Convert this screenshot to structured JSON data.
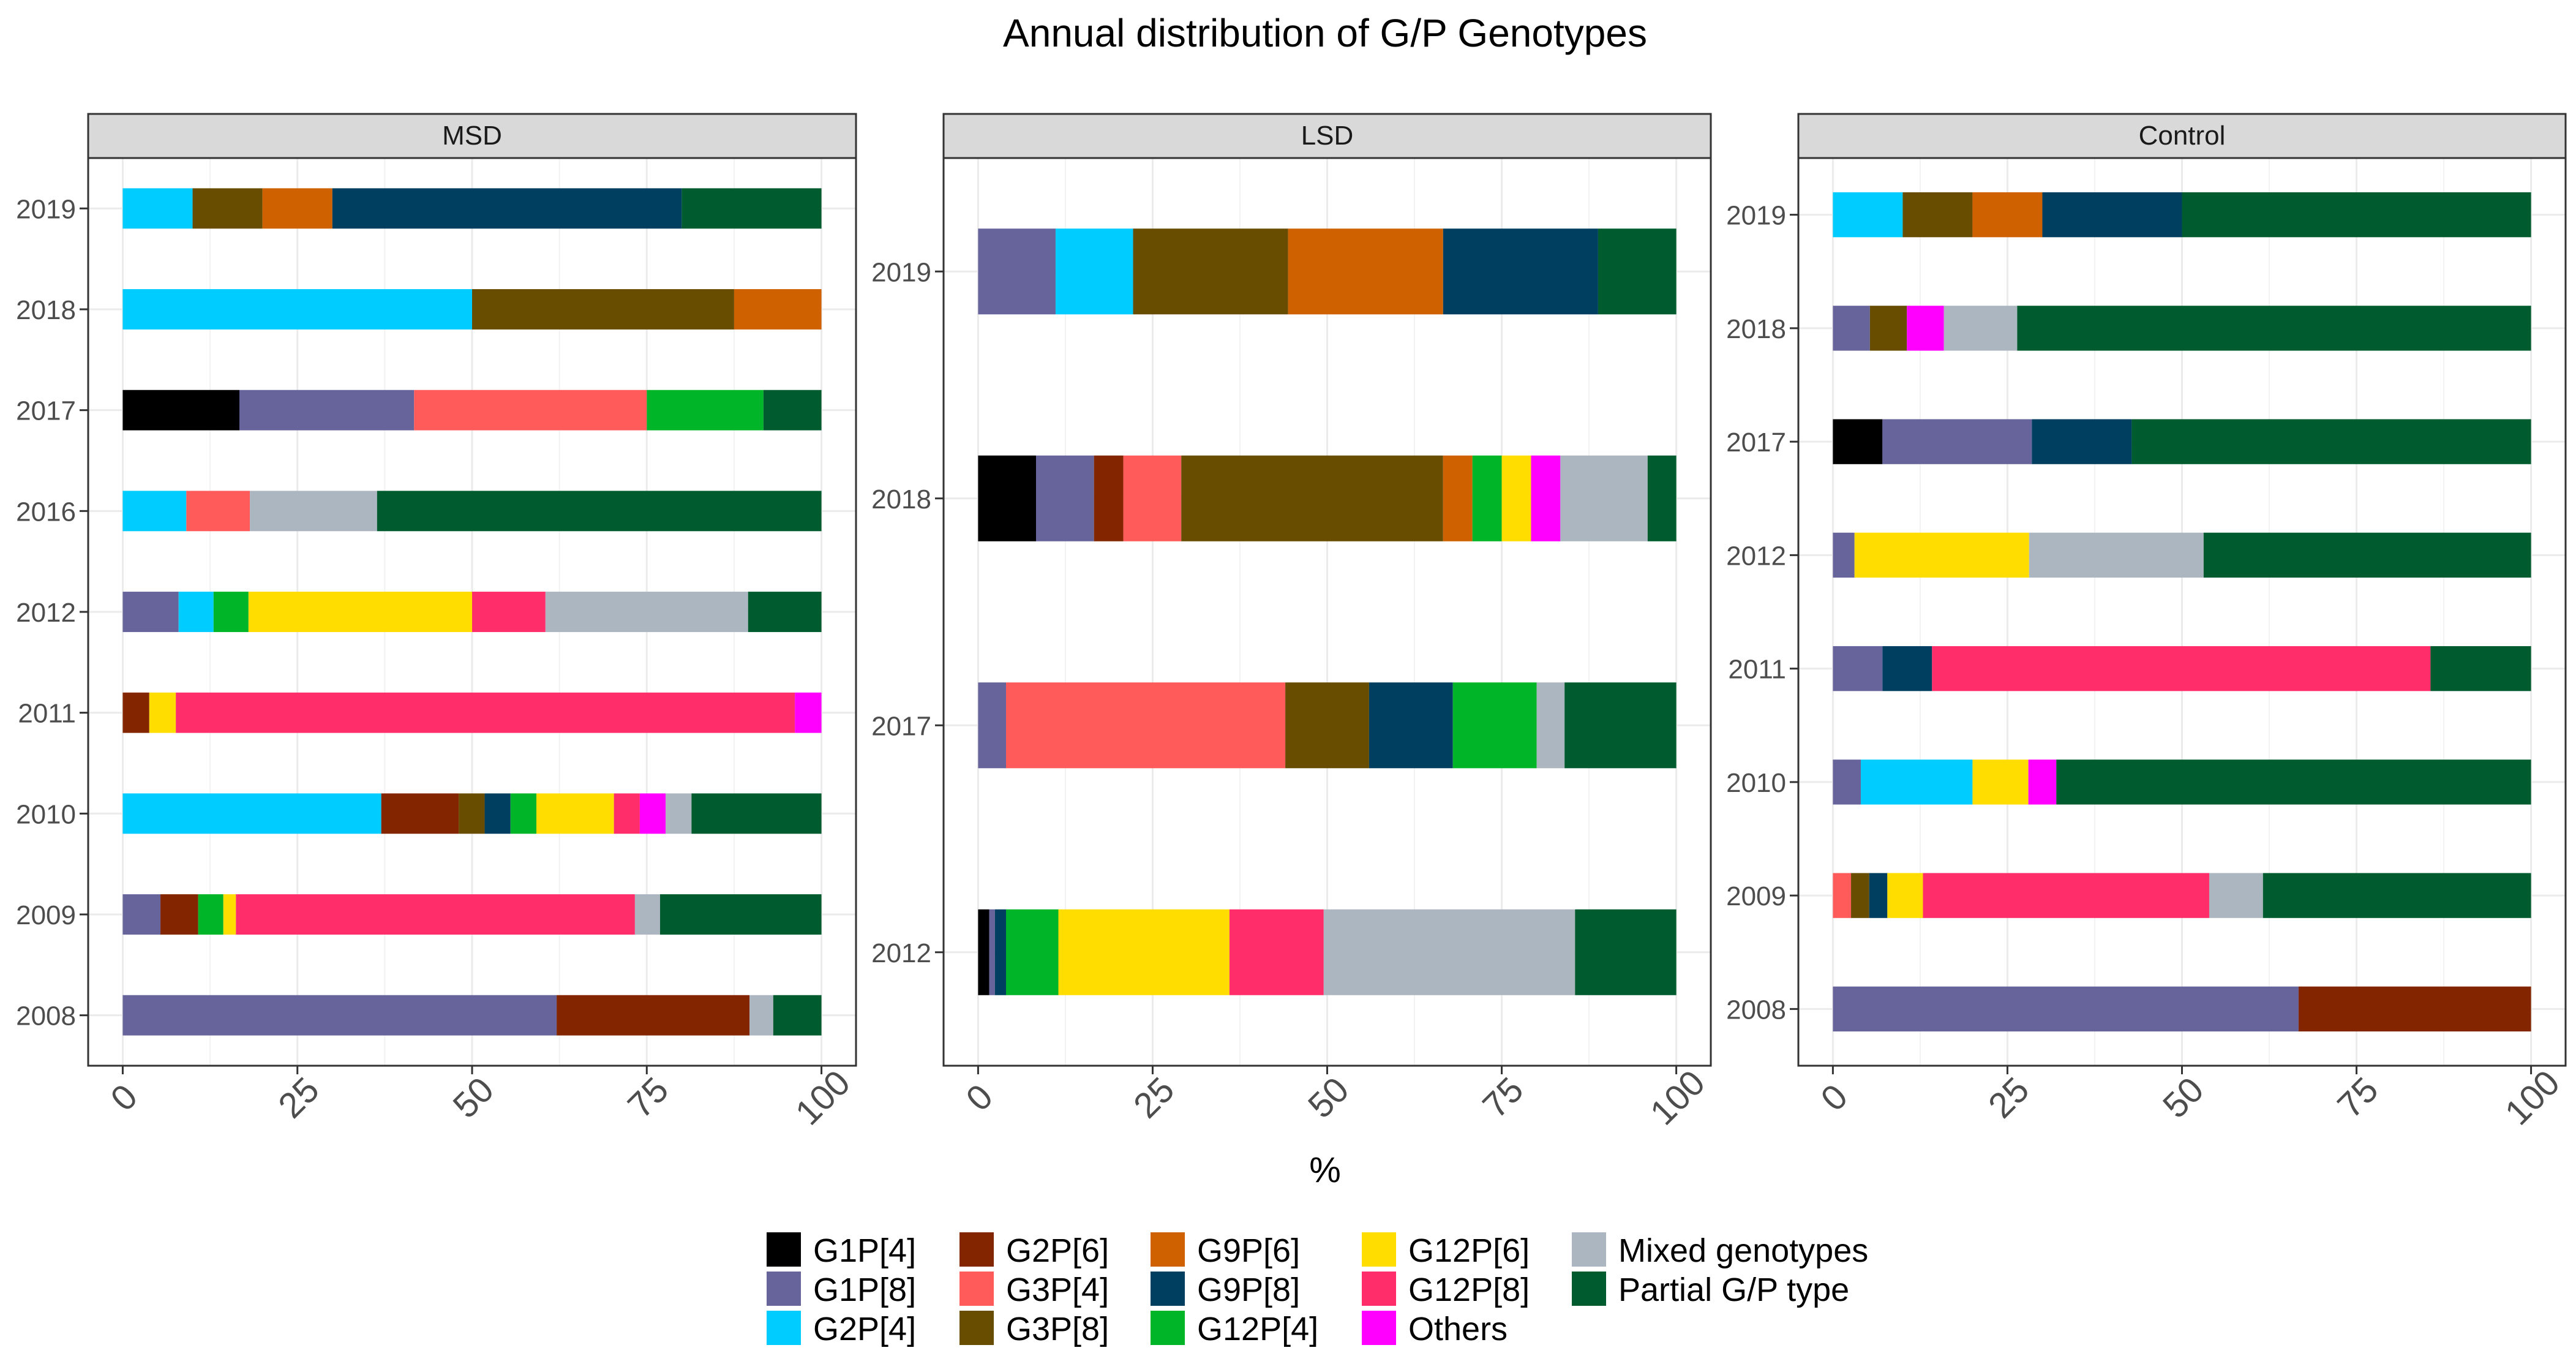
{
  "chart_data": {
    "type": "bar",
    "orientation": "horizontal",
    "stacked": true,
    "title": "Annual distribution of G/P Genotypes",
    "xlabel": "%",
    "ylabel": "",
    "xlim": [
      0,
      100
    ],
    "x_ticks": [
      "0",
      "25",
      "50",
      "75",
      "100"
    ],
    "grid": true,
    "legend_position": "bottom",
    "legend": [
      {
        "name": "G1P[4]",
        "color": "#000000"
      },
      {
        "name": "G1P[8]",
        "color": "#67649C"
      },
      {
        "name": "G2P[4]",
        "color": "#00CCFF"
      },
      {
        "name": "G2P[6]",
        "color": "#832600"
      },
      {
        "name": "G3P[4]",
        "color": "#FF5B5B"
      },
      {
        "name": "G3P[8]",
        "color": "#684C00"
      },
      {
        "name": "G9P[6]",
        "color": "#D06100"
      },
      {
        "name": "G9P[8]",
        "color": "#003F60"
      },
      {
        "name": "G12P[4]",
        "color": "#00B527"
      },
      {
        "name": "G12P[6]",
        "color": "#FFDD00"
      },
      {
        "name": "G12P[8]",
        "color": "#FF2D6A"
      },
      {
        "name": "Others",
        "color": "#FF00FF"
      },
      {
        "name": "Mixed genotypes",
        "color": "#ACB6C0"
      },
      {
        "name": "Partial G/P type",
        "color": "#005C2E"
      }
    ],
    "panels": [
      {
        "name": "MSD",
        "categories": [
          "2019",
          "2018",
          "2017",
          "2016",
          "2012",
          "2011",
          "2010",
          "2009",
          "2008"
        ],
        "bars": [
          {
            "year": "2019",
            "segments": [
              {
                "genotype": "G2P[4]",
                "value": 10
              },
              {
                "genotype": "G3P[8]",
                "value": 10
              },
              {
                "genotype": "G9P[6]",
                "value": 10
              },
              {
                "genotype": "G9P[8]",
                "value": 50
              },
              {
                "genotype": "Partial G/P type",
                "value": 20
              }
            ]
          },
          {
            "year": "2018",
            "segments": [
              {
                "genotype": "G2P[4]",
                "value": 50
              },
              {
                "genotype": "G3P[8]",
                "value": 37.5
              },
              {
                "genotype": "G9P[6]",
                "value": 12.5
              }
            ]
          },
          {
            "year": "2017",
            "segments": [
              {
                "genotype": "G1P[4]",
                "value": 16.7
              },
              {
                "genotype": "G1P[8]",
                "value": 25
              },
              {
                "genotype": "G3P[4]",
                "value": 33.3
              },
              {
                "genotype": "G12P[4]",
                "value": 16.7
              },
              {
                "genotype": "Partial G/P type",
                "value": 8.3
              }
            ]
          },
          {
            "year": "2016",
            "segments": [
              {
                "genotype": "G2P[4]",
                "value": 9.1
              },
              {
                "genotype": "G3P[4]",
                "value": 9.1
              },
              {
                "genotype": "Mixed genotypes",
                "value": 18.2
              },
              {
                "genotype": "Partial G/P type",
                "value": 63.6
              }
            ]
          },
          {
            "year": "2012",
            "segments": [
              {
                "genotype": "G1P[8]",
                "value": 8
              },
              {
                "genotype": "G2P[4]",
                "value": 5
              },
              {
                "genotype": "G12P[4]",
                "value": 5
              },
              {
                "genotype": "G12P[6]",
                "value": 32
              },
              {
                "genotype": "G12P[8]",
                "value": 10.5
              },
              {
                "genotype": "Mixed genotypes",
                "value": 29
              },
              {
                "genotype": "Partial G/P type",
                "value": 10.5
              }
            ]
          },
          {
            "year": "2011",
            "segments": [
              {
                "genotype": "G2P[6]",
                "value": 3.8
              },
              {
                "genotype": "G12P[6]",
                "value": 3.8
              },
              {
                "genotype": "G12P[8]",
                "value": 88.6
              },
              {
                "genotype": "Others",
                "value": 3.8
              }
            ]
          },
          {
            "year": "2010",
            "segments": [
              {
                "genotype": "G2P[4]",
                "value": 37
              },
              {
                "genotype": "G2P[6]",
                "value": 11.1
              },
              {
                "genotype": "G3P[8]",
                "value": 3.7
              },
              {
                "genotype": "G9P[8]",
                "value": 3.7
              },
              {
                "genotype": "G12P[4]",
                "value": 3.7
              },
              {
                "genotype": "G12P[6]",
                "value": 11.1
              },
              {
                "genotype": "G12P[8]",
                "value": 3.7
              },
              {
                "genotype": "Others",
                "value": 3.7
              },
              {
                "genotype": "Mixed genotypes",
                "value": 3.7
              },
              {
                "genotype": "Partial G/P type",
                "value": 18.6
              }
            ]
          },
          {
            "year": "2009",
            "segments": [
              {
                "genotype": "G1P[8]",
                "value": 5.4
              },
              {
                "genotype": "G2P[6]",
                "value": 5.4
              },
              {
                "genotype": "G12P[4]",
                "value": 3.6
              },
              {
                "genotype": "G12P[6]",
                "value": 1.8
              },
              {
                "genotype": "G12P[8]",
                "value": 57.1
              },
              {
                "genotype": "Mixed genotypes",
                "value": 3.6
              },
              {
                "genotype": "Partial G/P type",
                "value": 23.1
              }
            ]
          },
          {
            "year": "2008",
            "segments": [
              {
                "genotype": "G1P[8]",
                "value": 62.1
              },
              {
                "genotype": "G2P[6]",
                "value": 27.6
              },
              {
                "genotype": "Mixed genotypes",
                "value": 3.4
              },
              {
                "genotype": "Partial G/P type",
                "value": 6.9
              }
            ]
          }
        ]
      },
      {
        "name": "LSD",
        "categories": [
          "2019",
          "2018",
          "2017",
          "2012"
        ],
        "bars": [
          {
            "year": "2019",
            "segments": [
              {
                "genotype": "G1P[8]",
                "value": 11.1
              },
              {
                "genotype": "G2P[4]",
                "value": 11.1
              },
              {
                "genotype": "G3P[8]",
                "value": 22.2
              },
              {
                "genotype": "G9P[6]",
                "value": 22.2
              },
              {
                "genotype": "G9P[8]",
                "value": 22.2
              },
              {
                "genotype": "Partial G/P type",
                "value": 11.2
              }
            ]
          },
          {
            "year": "2018",
            "segments": [
              {
                "genotype": "G1P[4]",
                "value": 8.3
              },
              {
                "genotype": "G1P[8]",
                "value": 8.3
              },
              {
                "genotype": "G2P[6]",
                "value": 4.2
              },
              {
                "genotype": "G3P[4]",
                "value": 8.3
              },
              {
                "genotype": "G3P[8]",
                "value": 37.5
              },
              {
                "genotype": "G9P[6]",
                "value": 4.2
              },
              {
                "genotype": "G12P[4]",
                "value": 4.2
              },
              {
                "genotype": "G12P[6]",
                "value": 4.2
              },
              {
                "genotype": "Others",
                "value": 4.2
              },
              {
                "genotype": "Mixed genotypes",
                "value": 12.5
              },
              {
                "genotype": "Partial G/P type",
                "value": 4.1
              }
            ]
          },
          {
            "year": "2017",
            "segments": [
              {
                "genotype": "G1P[8]",
                "value": 4
              },
              {
                "genotype": "G3P[4]",
                "value": 40
              },
              {
                "genotype": "G3P[8]",
                "value": 12
              },
              {
                "genotype": "G9P[8]",
                "value": 12
              },
              {
                "genotype": "G12P[4]",
                "value": 12
              },
              {
                "genotype": "Mixed genotypes",
                "value": 4
              },
              {
                "genotype": "Partial G/P type",
                "value": 16
              }
            ]
          },
          {
            "year": "2012",
            "segments": [
              {
                "genotype": "G1P[4]",
                "value": 1.6
              },
              {
                "genotype": "G1P[8]",
                "value": 0.8
              },
              {
                "genotype": "G9P[8]",
                "value": 1.6
              },
              {
                "genotype": "G12P[4]",
                "value": 7.5
              },
              {
                "genotype": "G12P[6]",
                "value": 24.5
              },
              {
                "genotype": "G12P[8]",
                "value": 13.5
              },
              {
                "genotype": "Mixed genotypes",
                "value": 36
              },
              {
                "genotype": "Partial G/P type",
                "value": 14.5
              }
            ]
          }
        ]
      },
      {
        "name": "Control",
        "categories": [
          "2019",
          "2018",
          "2017",
          "2012",
          "2011",
          "2010",
          "2009",
          "2008"
        ],
        "bars": [
          {
            "year": "2019",
            "segments": [
              {
                "genotype": "G2P[4]",
                "value": 10
              },
              {
                "genotype": "G3P[8]",
                "value": 10
              },
              {
                "genotype": "G9P[6]",
                "value": 10
              },
              {
                "genotype": "G9P[8]",
                "value": 20
              },
              {
                "genotype": "Partial G/P type",
                "value": 50
              }
            ]
          },
          {
            "year": "2018",
            "segments": [
              {
                "genotype": "G1P[8]",
                "value": 5.3
              },
              {
                "genotype": "G3P[8]",
                "value": 5.3
              },
              {
                "genotype": "Others",
                "value": 5.3
              },
              {
                "genotype": "Mixed genotypes",
                "value": 10.5
              },
              {
                "genotype": "Partial G/P type",
                "value": 73.6
              }
            ]
          },
          {
            "year": "2017",
            "segments": [
              {
                "genotype": "G1P[4]",
                "value": 7.1
              },
              {
                "genotype": "G1P[8]",
                "value": 21.4
              },
              {
                "genotype": "G9P[8]",
                "value": 14.3
              },
              {
                "genotype": "Partial G/P type",
                "value": 57.2
              }
            ]
          },
          {
            "year": "2012",
            "segments": [
              {
                "genotype": "G1P[8]",
                "value": 3.1
              },
              {
                "genotype": "G12P[6]",
                "value": 25
              },
              {
                "genotype": "Mixed genotypes",
                "value": 25
              },
              {
                "genotype": "Partial G/P type",
                "value": 46.9
              }
            ]
          },
          {
            "year": "2011",
            "segments": [
              {
                "genotype": "G1P[8]",
                "value": 7.1
              },
              {
                "genotype": "G9P[8]",
                "value": 7.1
              },
              {
                "genotype": "G12P[8]",
                "value": 71.4
              },
              {
                "genotype": "Partial G/P type",
                "value": 14.4
              }
            ]
          },
          {
            "year": "2010",
            "segments": [
              {
                "genotype": "G1P[8]",
                "value": 4
              },
              {
                "genotype": "G2P[4]",
                "value": 16
              },
              {
                "genotype": "G12P[6]",
                "value": 8
              },
              {
                "genotype": "Others",
                "value": 4
              },
              {
                "genotype": "Partial G/P type",
                "value": 68
              }
            ]
          },
          {
            "year": "2009",
            "segments": [
              {
                "genotype": "G3P[4]",
                "value": 2.6
              },
              {
                "genotype": "G3P[8]",
                "value": 2.6
              },
              {
                "genotype": "G9P[8]",
                "value": 2.6
              },
              {
                "genotype": "G12P[6]",
                "value": 5.1
              },
              {
                "genotype": "G12P[8]",
                "value": 41
              },
              {
                "genotype": "Mixed genotypes",
                "value": 7.7
              },
              {
                "genotype": "Partial G/P type",
                "value": 38.4
              }
            ]
          },
          {
            "year": "2008",
            "segments": [
              {
                "genotype": "G1P[8]",
                "value": 66.7
              },
              {
                "genotype": "G2P[6]",
                "value": 33.3
              }
            ]
          }
        ]
      }
    ]
  }
}
